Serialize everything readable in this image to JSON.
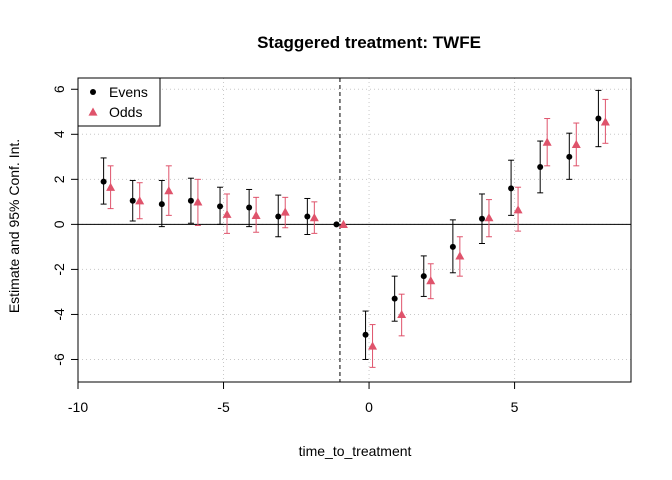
{
  "chart_data": {
    "type": "scatter",
    "title": "Staggered treatment: TWFE",
    "xlabel": "time_to_treatment",
    "ylabel": "Estimate and 95% Conf. Int.",
    "xlim": [
      -10,
      9
    ],
    "ylim": [
      -7,
      6.5
    ],
    "x_ticks": [
      -10,
      -5,
      0,
      5
    ],
    "x_tick_labels": [
      "-10",
      "-5",
      "0",
      "5"
    ],
    "y_ticks": [
      -6,
      -4,
      -2,
      0,
      2,
      4,
      6
    ],
    "y_tick_labels": [
      "-6",
      "-4",
      "-2",
      "0",
      "2",
      "4",
      "6"
    ],
    "grid": true,
    "reference_lines": {
      "horizontal_y": 0,
      "vertical_x_dashed": -1
    },
    "legend": {
      "placement": "top-left"
    },
    "series": [
      {
        "name": "Evens",
        "color": "#000000",
        "marker": "circle",
        "points": [
          {
            "x": -9,
            "y": 1.9,
            "lo": 0.9,
            "hi": 2.95
          },
          {
            "x": -8,
            "y": 1.05,
            "lo": 0.15,
            "hi": 1.95
          },
          {
            "x": -7,
            "y": 0.9,
            "lo": -0.1,
            "hi": 1.95
          },
          {
            "x": -6,
            "y": 1.05,
            "lo": 0.05,
            "hi": 2.05
          },
          {
            "x": -5,
            "y": 0.8,
            "lo": 0.0,
            "hi": 1.65
          },
          {
            "x": -4,
            "y": 0.75,
            "lo": -0.1,
            "hi": 1.55
          },
          {
            "x": -3,
            "y": 0.35,
            "lo": -0.55,
            "hi": 1.3
          },
          {
            "x": -2,
            "y": 0.35,
            "lo": -0.45,
            "hi": 1.15
          },
          {
            "x": -1,
            "y": 0.0,
            "lo": 0.0,
            "hi": 0.0
          },
          {
            "x": 0,
            "y": -4.9,
            "lo": -6.0,
            "hi": -3.85
          },
          {
            "x": 1,
            "y": -3.3,
            "lo": -4.3,
            "hi": -2.3
          },
          {
            "x": 2,
            "y": -2.3,
            "lo": -3.2,
            "hi": -1.4
          },
          {
            "x": 3,
            "y": -1.0,
            "lo": -2.15,
            "hi": 0.2
          },
          {
            "x": 4,
            "y": 0.25,
            "lo": -0.85,
            "hi": 1.35
          },
          {
            "x": 5,
            "y": 1.6,
            "lo": 0.4,
            "hi": 2.85
          },
          {
            "x": 6,
            "y": 2.55,
            "lo": 1.4,
            "hi": 3.7
          },
          {
            "x": 7,
            "y": 3.0,
            "lo": 2.0,
            "hi": 4.05
          },
          {
            "x": 8,
            "y": 4.7,
            "lo": 3.45,
            "hi": 5.95
          }
        ]
      },
      {
        "name": "Odds",
        "color": "#DF536B",
        "marker": "triangle",
        "points": [
          {
            "x": -9,
            "y": 1.65,
            "lo": 0.7,
            "hi": 2.6
          },
          {
            "x": -8,
            "y": 1.05,
            "lo": 0.25,
            "hi": 1.85
          },
          {
            "x": -7,
            "y": 1.5,
            "lo": 0.4,
            "hi": 2.6
          },
          {
            "x": -6,
            "y": 1.0,
            "lo": -0.05,
            "hi": 2.0
          },
          {
            "x": -5,
            "y": 0.45,
            "lo": -0.4,
            "hi": 1.35
          },
          {
            "x": -4,
            "y": 0.4,
            "lo": -0.35,
            "hi": 1.2
          },
          {
            "x": -3,
            "y": 0.55,
            "lo": -0.15,
            "hi": 1.2
          },
          {
            "x": -2,
            "y": 0.3,
            "lo": -0.4,
            "hi": 1.0
          },
          {
            "x": -1,
            "y": 0.0,
            "lo": 0.0,
            "hi": 0.0
          },
          {
            "x": 0,
            "y": -5.4,
            "lo": -6.35,
            "hi": -4.45
          },
          {
            "x": 1,
            "y": -4.0,
            "lo": -4.95,
            "hi": -3.1
          },
          {
            "x": 2,
            "y": -2.5,
            "lo": -3.3,
            "hi": -1.75
          },
          {
            "x": 3,
            "y": -1.4,
            "lo": -2.3,
            "hi": -0.55
          },
          {
            "x": 4,
            "y": 0.3,
            "lo": -0.55,
            "hi": 1.1
          },
          {
            "x": 5,
            "y": 0.65,
            "lo": -0.3,
            "hi": 1.65
          },
          {
            "x": 6,
            "y": 3.65,
            "lo": 2.6,
            "hi": 4.7
          },
          {
            "x": 7,
            "y": 3.55,
            "lo": 2.6,
            "hi": 4.5
          },
          {
            "x": 8,
            "y": 4.55,
            "lo": 3.6,
            "hi": 5.55
          }
        ]
      }
    ]
  }
}
